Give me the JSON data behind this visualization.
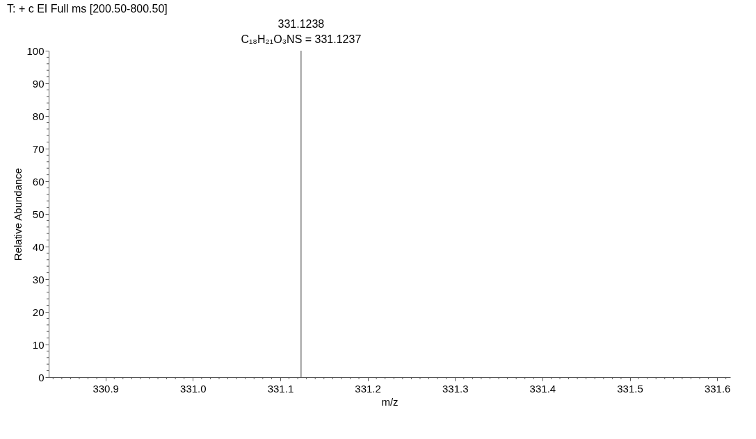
{
  "chart_data": {
    "type": "bar",
    "x": [
      331.1238
    ],
    "values": [
      100
    ],
    "color": "#808080",
    "xlabel": "m/z",
    "ylabel": "Relative Abundance",
    "xlim": [
      330.835,
      331.615
    ],
    "ylim": [
      0,
      100
    ],
    "xticks": [
      {
        "value": 330.84,
        "label": null
      },
      {
        "value": 330.85,
        "label": null
      },
      {
        "value": 330.86,
        "label": null
      },
      {
        "value": 330.87,
        "label": null
      },
      {
        "value": 330.88,
        "label": null
      },
      {
        "value": 330.89,
        "label": null
      },
      330.9,
      {
        "value": 330.91,
        "label": null
      },
      {
        "value": 330.92,
        "label": null
      },
      {
        "value": 330.93,
        "label": null
      },
      {
        "value": 330.94,
        "label": null
      },
      {
        "value": 330.95,
        "label": null
      },
      {
        "value": 330.96,
        "label": null
      },
      {
        "value": 330.97,
        "label": null
      },
      {
        "value": 330.98,
        "label": null
      },
      {
        "value": 330.99,
        "label": null
      },
      {
        "value": 331.0,
        "label": "331.0"
      },
      {
        "value": 331.01,
        "label": null
      },
      {
        "value": 331.02,
        "label": null
      },
      {
        "value": 331.03,
        "label": null
      },
      {
        "value": 331.04,
        "label": null
      },
      {
        "value": 331.05,
        "label": null
      },
      {
        "value": 331.06,
        "label": null
      },
      {
        "value": 331.07,
        "label": null
      },
      {
        "value": 331.08,
        "label": null
      },
      {
        "value": 331.09,
        "label": null
      },
      331.1,
      {
        "value": 331.11,
        "label": null
      },
      {
        "value": 331.12,
        "label": null
      },
      {
        "value": 331.13,
        "label": null
      },
      {
        "value": 331.14,
        "label": null
      },
      {
        "value": 331.15,
        "label": null
      },
      {
        "value": 331.16,
        "label": null
      },
      {
        "value": 331.17,
        "label": null
      },
      {
        "value": 331.18,
        "label": null
      },
      {
        "value": 331.19,
        "label": null
      },
      331.2,
      {
        "value": 331.21,
        "label": null
      },
      {
        "value": 331.22,
        "label": null
      },
      {
        "value": 331.23,
        "label": null
      },
      {
        "value": 331.24,
        "label": null
      },
      {
        "value": 331.25,
        "label": null
      },
      {
        "value": 331.26,
        "label": null
      },
      {
        "value": 331.27,
        "label": null
      },
      {
        "value": 331.28,
        "label": null
      },
      {
        "value": 331.29,
        "label": null
      },
      331.3,
      {
        "value": 331.31,
        "label": null
      },
      {
        "value": 331.32,
        "label": null
      },
      {
        "value": 331.33,
        "label": null
      },
      {
        "value": 331.34,
        "label": null
      },
      {
        "value": 331.35,
        "label": null
      },
      {
        "value": 331.36,
        "label": null
      },
      {
        "value": 331.37,
        "label": null
      },
      {
        "value": 331.38,
        "label": null
      },
      {
        "value": 331.39,
        "label": null
      },
      331.4,
      {
        "value": 331.41,
        "label": null
      },
      {
        "value": 331.42,
        "label": null
      },
      {
        "value": 331.43,
        "label": null
      },
      {
        "value": 331.44,
        "label": null
      },
      {
        "value": 331.45,
        "label": null
      },
      {
        "value": 331.46,
        "label": null
      },
      {
        "value": 331.47,
        "label": null
      },
      {
        "value": 331.48,
        "label": null
      },
      {
        "value": 331.49,
        "label": null
      },
      331.5,
      {
        "value": 331.51,
        "label": null
      },
      {
        "value": 331.52,
        "label": null
      },
      {
        "value": 331.53,
        "label": null
      },
      {
        "value": 331.54,
        "label": null
      },
      {
        "value": 331.55,
        "label": null
      },
      {
        "value": 331.56,
        "label": null
      },
      {
        "value": 331.57,
        "label": null
      },
      {
        "value": 331.58,
        "label": null
      },
      {
        "value": 331.59,
        "label": null
      },
      331.6,
      {
        "value": 331.61,
        "label": null
      }
    ],
    "yticks": [
      0,
      {
        "value": 2,
        "label": null
      },
      {
        "value": 4,
        "label": null
      },
      {
        "value": 6,
        "label": null
      },
      {
        "value": 8,
        "label": null
      },
      10,
      {
        "value": 12,
        "label": null
      },
      {
        "value": 14,
        "label": null
      },
      {
        "value": 16,
        "label": null
      },
      {
        "value": 18,
        "label": null
      },
      20,
      {
        "value": 22,
        "label": null
      },
      {
        "value": 24,
        "label": null
      },
      {
        "value": 26,
        "label": null
      },
      {
        "value": 28,
        "label": null
      },
      30,
      {
        "value": 32,
        "label": null
      },
      {
        "value": 34,
        "label": null
      },
      {
        "value": 36,
        "label": null
      },
      {
        "value": 38,
        "label": null
      },
      40,
      {
        "value": 42,
        "label": null
      },
      {
        "value": 44,
        "label": null
      },
      {
        "value": 46,
        "label": null
      },
      {
        "value": 48,
        "label": null
      },
      50,
      {
        "value": 52,
        "label": null
      },
      {
        "value": 54,
        "label": null
      },
      {
        "value": 56,
        "label": null
      },
      {
        "value": 58,
        "label": null
      },
      60,
      {
        "value": 62,
        "label": null
      },
      {
        "value": 64,
        "label": null
      },
      {
        "value": 66,
        "label": null
      },
      {
        "value": 68,
        "label": null
      },
      70,
      {
        "value": 72,
        "label": null
      },
      {
        "value": 74,
        "label": null
      },
      {
        "value": 76,
        "label": null
      },
      {
        "value": 78,
        "label": null
      },
      80,
      {
        "value": 82,
        "label": null
      },
      {
        "value": 84,
        "label": null
      },
      {
        "value": 86,
        "label": null
      },
      {
        "value": 88,
        "label": null
      },
      90,
      {
        "value": 92,
        "label": null
      },
      {
        "value": 94,
        "label": null
      },
      {
        "value": 96,
        "label": null
      },
      {
        "value": 98,
        "label": null
      },
      100
    ],
    "grid": false,
    "annotations": [
      "T: + c EI Full ms [200.50-800.50]",
      "331.1238",
      "C₁₈H₂₁O₃NS = 331.1237"
    ]
  }
}
